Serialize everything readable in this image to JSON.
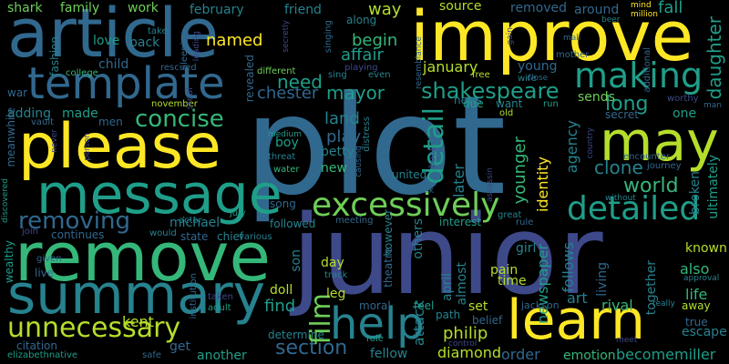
{
  "palette": [
    "#440154",
    "#482878",
    "#3e4989",
    "#31688e",
    "#26828e",
    "#1f9e89",
    "#35b779",
    "#6ece58",
    "#b5de2b",
    "#fde725"
  ],
  "words": [
    {
      "text": "plot",
      "c": 3
    },
    {
      "text": "junior",
      "c": 2
    },
    {
      "text": "article",
      "c": 3
    },
    {
      "text": "improve",
      "c": 9
    },
    {
      "text": "remove",
      "c": 6
    },
    {
      "text": "please",
      "c": 9
    },
    {
      "text": "summary",
      "c": 4
    },
    {
      "text": "learn",
      "c": 9
    },
    {
      "text": "message",
      "c": 5
    },
    {
      "text": "template",
      "c": 3
    },
    {
      "text": "may",
      "c": 8
    },
    {
      "text": "making",
      "c": 5
    },
    {
      "text": "help",
      "c": 4
    },
    {
      "text": "unnecessary",
      "c": 8
    },
    {
      "text": "excessively",
      "c": 7
    },
    {
      "text": "detailed",
      "c": 5
    },
    {
      "text": "concise",
      "c": 6
    },
    {
      "text": "removing",
      "c": 3
    },
    {
      "text": "shakespeare",
      "c": 5
    },
    {
      "text": "detail",
      "c": 5
    },
    {
      "text": "section",
      "c": 3
    },
    {
      "text": "long",
      "c": 5
    },
    {
      "text": "world",
      "c": 6
    },
    {
      "text": "clone",
      "c": 4
    },
    {
      "text": "daughter",
      "c": 5
    },
    {
      "text": "film",
      "c": 7
    },
    {
      "text": "need",
      "c": 5
    },
    {
      "text": "mayor",
      "c": 5
    },
    {
      "text": "chester",
      "c": 3
    },
    {
      "text": "land",
      "c": 4
    },
    {
      "text": "play",
      "c": 3
    },
    {
      "text": "named",
      "c": 9
    },
    {
      "text": "begin",
      "c": 6
    },
    {
      "text": "affair",
      "c": 5
    },
    {
      "text": "january",
      "c": 8
    },
    {
      "text": "attack",
      "c": 4
    },
    {
      "text": "kent",
      "c": 8
    },
    {
      "text": "philip",
      "c": 8
    },
    {
      "text": "diamond",
      "c": 8
    },
    {
      "text": "order",
      "c": 3
    },
    {
      "text": "emotion",
      "c": 6
    },
    {
      "text": "becomemiller",
      "c": 5
    },
    {
      "text": "escape",
      "c": 4
    },
    {
      "text": "life",
      "c": 6
    },
    {
      "text": "also",
      "c": 6
    },
    {
      "text": "known",
      "c": 8
    },
    {
      "text": "art",
      "c": 4
    },
    {
      "text": "rival",
      "c": 6
    },
    {
      "text": "set",
      "c": 8
    },
    {
      "text": "time",
      "c": 8
    },
    {
      "text": "pain",
      "c": 8
    },
    {
      "text": "find",
      "c": 5
    },
    {
      "text": "fellow",
      "c": 4
    },
    {
      "text": "another",
      "c": 5
    },
    {
      "text": "get",
      "c": 3
    },
    {
      "text": "michael",
      "c": 4
    },
    {
      "text": "continues",
      "c": 3
    },
    {
      "text": "state",
      "c": 3
    },
    {
      "text": "way",
      "c": 8
    },
    {
      "text": "source",
      "c": 8
    },
    {
      "text": "removed",
      "c": 3
    },
    {
      "text": "around",
      "c": 3
    },
    {
      "text": "fall",
      "c": 5
    },
    {
      "text": "shark",
      "c": 7
    },
    {
      "text": "family",
      "c": 7
    },
    {
      "text": "work",
      "c": 7
    },
    {
      "text": "february",
      "c": 4
    },
    {
      "text": "friend",
      "c": 4
    },
    {
      "text": "love",
      "c": 5
    },
    {
      "text": "back",
      "c": 4
    },
    {
      "text": "child",
      "c": 3
    },
    {
      "text": "young",
      "c": 3
    },
    {
      "text": "sends",
      "c": 7
    },
    {
      "text": "one",
      "c": 5
    },
    {
      "text": "secret",
      "c": 3
    },
    {
      "text": "boy",
      "c": 5
    },
    {
      "text": "betty",
      "c": 4
    },
    {
      "text": "new",
      "c": 6
    },
    {
      "text": "united",
      "c": 4
    },
    {
      "text": "adding",
      "c": 4
    },
    {
      "text": "made",
      "c": 5
    },
    {
      "text": "men",
      "c": 3
    },
    {
      "text": "meanwhile",
      "c": 3
    },
    {
      "text": "song",
      "c": 3
    },
    {
      "text": "day",
      "c": 8
    },
    {
      "text": "doll",
      "c": 8
    },
    {
      "text": "leg",
      "c": 8
    },
    {
      "text": "son",
      "c": 4
    },
    {
      "text": "however",
      "c": 4
    },
    {
      "text": "others",
      "c": 4
    },
    {
      "text": "april",
      "c": 4
    },
    {
      "text": "almost",
      "c": 4
    },
    {
      "text": "later",
      "c": 4
    },
    {
      "text": "younger",
      "c": 6
    },
    {
      "text": "identity",
      "c": 9
    },
    {
      "text": "agency",
      "c": 4
    },
    {
      "text": "newspaper",
      "c": 5
    },
    {
      "text": "follows",
      "c": 4
    },
    {
      "text": "living",
      "c": 3
    },
    {
      "text": "together",
      "c": 4
    },
    {
      "text": "broken",
      "c": 4
    },
    {
      "text": "ultimately",
      "c": 5
    },
    {
      "text": "girl",
      "c": 4
    },
    {
      "text": "true",
      "c": 3
    },
    {
      "text": "away",
      "c": 8
    },
    {
      "text": "wealthy",
      "c": 5
    },
    {
      "text": "live",
      "c": 3
    },
    {
      "text": "citation",
      "c": 3
    },
    {
      "text": "interest",
      "c": 5
    },
    {
      "text": "followed",
      "c": 4
    },
    {
      "text": "determine",
      "c": 4
    },
    {
      "text": "moral",
      "c": 3
    },
    {
      "text": "belief",
      "c": 3
    },
    {
      "text": "path",
      "c": 4
    },
    {
      "text": "feel",
      "c": 5
    },
    {
      "text": "jackson",
      "c": 3
    },
    {
      "text": "elizabethnative",
      "c": 5
    },
    {
      "text": "rescued",
      "c": 3
    },
    {
      "text": "november",
      "c": 8
    },
    {
      "text": "steal",
      "c": 2
    },
    {
      "text": "revealed",
      "c": 3
    },
    {
      "text": "sing",
      "c": 4
    },
    {
      "text": "playing",
      "c": 2
    },
    {
      "text": "different",
      "c": 7
    },
    {
      "text": "along",
      "c": 4
    },
    {
      "text": "mother",
      "c": 3
    },
    {
      "text": "additional",
      "c": 3
    },
    {
      "text": "worthy",
      "c": 2
    },
    {
      "text": "news",
      "c": 4
    },
    {
      "text": "due",
      "c": 5
    },
    {
      "text": "want",
      "c": 4
    },
    {
      "text": "boat",
      "c": 2
    },
    {
      "text": "old",
      "c": 8
    },
    {
      "text": "run",
      "c": 5
    },
    {
      "text": "encounter",
      "c": 3
    },
    {
      "text": "journey",
      "c": 3
    },
    {
      "text": "great",
      "c": 4
    },
    {
      "text": "rule",
      "c": 3
    },
    {
      "text": "meeting",
      "c": 3
    },
    {
      "text": "track",
      "c": 4
    },
    {
      "text": "theatre",
      "c": 3
    },
    {
      "text": "chief",
      "c": 4
    },
    {
      "text": "various",
      "c": 4
    },
    {
      "text": "would",
      "c": 4
    },
    {
      "text": "actor",
      "c": 4
    },
    {
      "text": "july",
      "c": 5
    },
    {
      "text": "given",
      "c": 3
    },
    {
      "text": "join",
      "c": 2
    },
    {
      "text": "institution",
      "c": 3
    },
    {
      "text": "taken",
      "c": 2
    },
    {
      "text": "adult",
      "c": 5
    },
    {
      "text": "safe",
      "c": 3
    },
    {
      "text": "control",
      "c": 2
    },
    {
      "text": "role",
      "c": 5
    },
    {
      "text": "water",
      "c": 6
    },
    {
      "text": "threat",
      "c": 4
    },
    {
      "text": "medium",
      "c": 5
    },
    {
      "text": "causing",
      "c": 3
    },
    {
      "text": "distress",
      "c": 4
    },
    {
      "text": "college",
      "c": 6
    },
    {
      "text": "never",
      "c": 2
    },
    {
      "text": "person",
      "c": 2
    },
    {
      "text": "discovered",
      "c": 5
    },
    {
      "text": "vault",
      "c": 3
    },
    {
      "text": "war",
      "c": 3
    },
    {
      "text": "fashion",
      "c": 4
    },
    {
      "text": "take",
      "c": 4
    },
    {
      "text": "sleeping",
      "c": 3
    },
    {
      "text": "leading",
      "c": 2
    },
    {
      "text": "beer",
      "c": 4
    },
    {
      "text": "mind",
      "c": 9
    },
    {
      "text": "million",
      "c": 9
    },
    {
      "text": "free",
      "c": 8
    },
    {
      "text": "wife",
      "c": 4
    },
    {
      "text": "close",
      "c": 3
    },
    {
      "text": "mall",
      "c": 3
    },
    {
      "text": "gain",
      "c": 2
    },
    {
      "text": "man",
      "c": 3
    },
    {
      "text": "meet",
      "c": 2
    },
    {
      "text": "really",
      "c": 4
    },
    {
      "text": "approval",
      "c": 4
    },
    {
      "text": "without",
      "c": 4
    },
    {
      "text": "country",
      "c": 2
    },
    {
      "text": "assassin",
      "c": 2
    },
    {
      "text": "park",
      "c": 3
    },
    {
      "text": "even",
      "c": 4
    },
    {
      "text": "resemblance",
      "c": 3
    },
    {
      "text": "secretly",
      "c": 2
    },
    {
      "text": "singing",
      "c": 3
    }
  ]
}
